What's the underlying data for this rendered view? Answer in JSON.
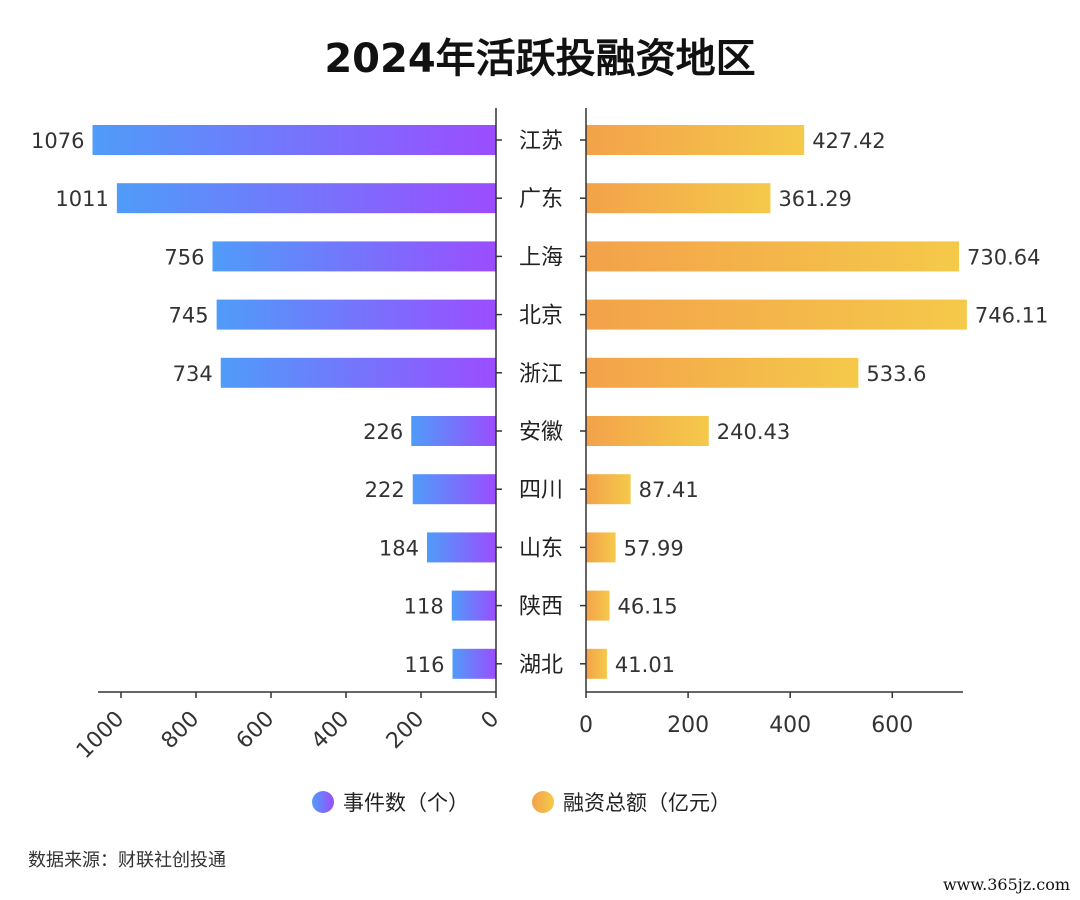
{
  "chart_data": {
    "type": "bar",
    "title": "2024年活跃投融资地区",
    "categories": [
      "江苏",
      "广东",
      "上海",
      "北京",
      "浙江",
      "安徽",
      "四川",
      "山东",
      "陕西",
      "湖北"
    ],
    "series": [
      {
        "name": "事件数（个）",
        "values": [
          1076,
          1011,
          756,
          745,
          734,
          226,
          222,
          184,
          118,
          116
        ],
        "value_labels": [
          "1076",
          "1011",
          "756",
          "745",
          "734",
          "226",
          "222",
          "184",
          "118",
          "116"
        ],
        "color_start": "#4f9cf9",
        "color_end": "#9b4dff",
        "side": "left"
      },
      {
        "name": "融资总额（亿元）",
        "values": [
          427.42,
          361.29,
          730.64,
          746.11,
          533.6,
          240.43,
          87.41,
          57.99,
          46.15,
          41.01
        ],
        "value_labels": [
          "427.42",
          "361.29",
          "730.64",
          "746.11",
          "533.6",
          "240.43",
          "87.41",
          "57.99",
          "46.15",
          "41.01"
        ],
        "color_start": "#f3a24a",
        "color_end": "#f5c94a",
        "side": "right"
      }
    ],
    "left_axis": {
      "ticks": [
        0,
        200,
        400,
        600,
        800,
        1000
      ],
      "tick_labels": [
        "0",
        "200",
        "400",
        "600",
        "800",
        "1000"
      ]
    },
    "right_axis": {
      "ticks": [
        0,
        200,
        400,
        600
      ],
      "tick_labels": [
        "0",
        "200",
        "400",
        "600"
      ]
    },
    "legend_position": "bottom-center",
    "grid": false
  },
  "source": "数据来源：财联社创投通",
  "watermark": "www.365jz.com"
}
